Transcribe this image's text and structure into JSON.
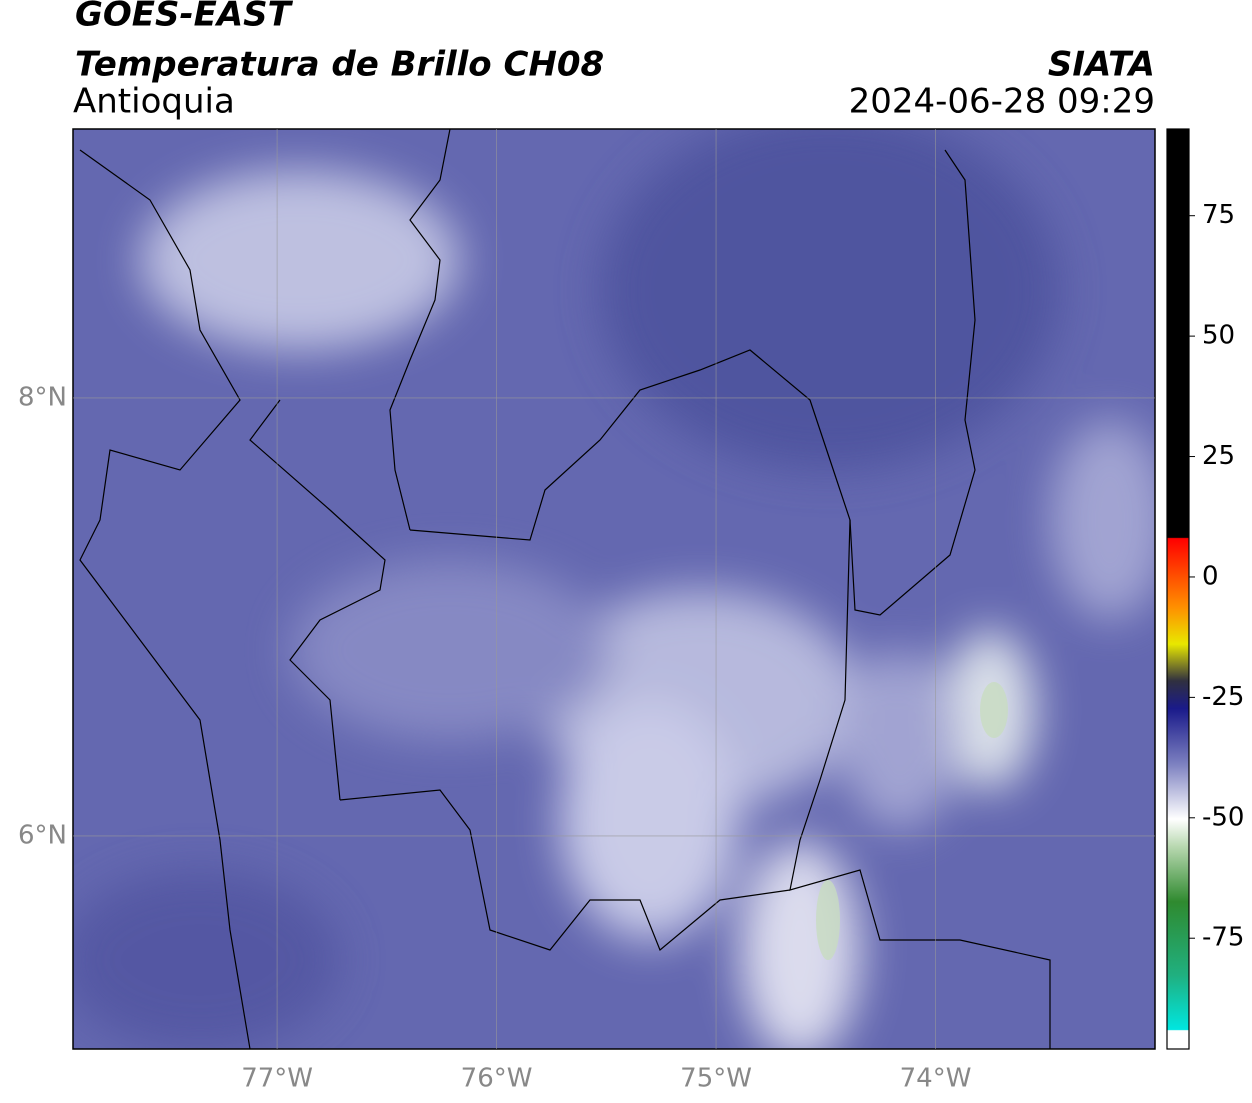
{
  "header": {
    "title": "GOES-EAST",
    "product": "Temperatura de Brillo CH08",
    "region": "Antioquia",
    "source": "SIATA",
    "timestamp": "2024-06-28 09:29"
  },
  "map": {
    "xlim": [
      -77.93,
      -73.0
    ],
    "ylim": [
      5.027,
      9.228
    ],
    "xticks": [
      {
        "value": -77,
        "label": "77°W"
      },
      {
        "value": -76,
        "label": "76°W"
      },
      {
        "value": -75,
        "label": "75°W"
      },
      {
        "value": -74,
        "label": "74°W"
      }
    ],
    "yticks": [
      {
        "value": 8,
        "label": "8°N"
      },
      {
        "value": 6,
        "label": "6°N"
      }
    ],
    "grid": true
  },
  "colorbar": {
    "lim": [
      -98,
      93
    ],
    "ticks": [
      75,
      50,
      25,
      0,
      -25,
      -50,
      -75
    ]
  }
}
